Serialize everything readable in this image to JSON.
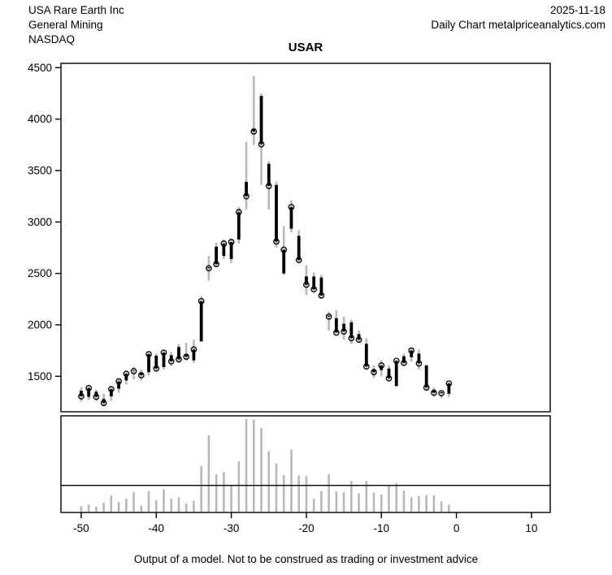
{
  "header": {
    "company": "USA Rare Earth Inc",
    "sector": "General Mining",
    "exchange": "NASDAQ",
    "date": "2025-11-18",
    "source": "Daily Chart metalpriceanalytics.com"
  },
  "footer": "Output of a model. Not to be construed as trading or investment advice",
  "chart_data": {
    "type": "ohlc-bar-with-volume",
    "title": "USAR",
    "xlabel": "",
    "ylabel": "",
    "x_ticks": [
      -50,
      -40,
      -30,
      -20,
      -10,
      0,
      10
    ],
    "y_ticks": [
      1500,
      2000,
      2500,
      3000,
      3500,
      4000,
      4500
    ],
    "xlim": [
      -52.7,
      12.5
    ],
    "ylim": [
      1155,
      4542
    ],
    "grid": false,
    "legend": "none",
    "x": [
      -50,
      -49,
      -48,
      -47,
      -46,
      -45,
      -44,
      -43,
      -42,
      -41,
      -40,
      -39,
      -38,
      -37,
      -36,
      -35,
      -34,
      -33,
      -32,
      -31,
      -30,
      -29,
      -28,
      -27,
      -26,
      -25,
      -24,
      -23,
      -22,
      -21,
      -20,
      -19,
      -18,
      -17,
      -16,
      -15,
      -14,
      -13,
      -12,
      -11,
      -10,
      -9,
      -8,
      -7,
      -6,
      -5,
      -4,
      -3,
      -2,
      -1
    ],
    "open": [
      1360,
      1300,
      1350,
      1280,
      1305,
      1380,
      1460,
      1555,
      1535,
      1540,
      1700,
      1590,
      1705,
      1785,
      1710,
      1655,
      1840,
      2560,
      2760,
      2670,
      2640,
      2830,
      3390,
      3905,
      4225,
      3565,
      3360,
      2500,
      2935,
      2865,
      2470,
      2470,
      2460,
      2090,
      2065,
      2010,
      2025,
      1910,
      1815,
      1570,
      1560,
      1575,
      1405,
      1695,
      1685,
      1720,
      1605,
      1370,
      1345,
      1330
    ],
    "high": [
      1395,
      1400,
      1370,
      1330,
      1395,
      1470,
      1550,
      1590,
      1565,
      1735,
      1720,
      1755,
      1735,
      1815,
      1825,
      1855,
      2280,
      2670,
      2800,
      2830,
      2840,
      3145,
      3780,
      4420,
      4250,
      3590,
      3395,
      2960,
      3210,
      2920,
      2580,
      2510,
      2485,
      2130,
      2140,
      2080,
      2050,
      1945,
      1870,
      1605,
      1655,
      1605,
      1660,
      1720,
      1775,
      1760,
      1615,
      1390,
      1365,
      1445
    ],
    "low": [
      1255,
      1270,
      1260,
      1215,
      1260,
      1340,
      1420,
      1470,
      1460,
      1510,
      1550,
      1565,
      1600,
      1630,
      1655,
      1630,
      1835,
      2430,
      2570,
      2640,
      2600,
      2790,
      3120,
      3750,
      3360,
      3120,
      2750,
      2485,
      2900,
      2600,
      2290,
      2325,
      2260,
      1945,
      1920,
      1855,
      1815,
      1825,
      1565,
      1485,
      1500,
      1460,
      1400,
      1600,
      1645,
      1565,
      1365,
      1300,
      1285,
      1300
    ],
    "close": [
      1305,
      1385,
      1300,
      1240,
      1375,
      1450,
      1525,
      1550,
      1510,
      1715,
      1575,
      1730,
      1645,
      1665,
      1690,
      1760,
      2230,
      2550,
      2590,
      2790,
      2805,
      3095,
      3250,
      3880,
      3755,
      3350,
      2810,
      2730,
      3145,
      2630,
      2390,
      2345,
      2285,
      2080,
      1925,
      1935,
      1870,
      1855,
      1595,
      1540,
      1605,
      1480,
      1650,
      1630,
      1750,
      1625,
      1390,
      1340,
      1335,
      1430
    ],
    "volume_pct": [
      5.6,
      7.3,
      5.0,
      9.2,
      16.8,
      10.1,
      13.4,
      20.4,
      6.4,
      21.3,
      12.0,
      23.3,
      13.4,
      14.9,
      8.4,
      11.2,
      47.1,
      79.2,
      38.7,
      40.9,
      28.0,
      52.1,
      96.1,
      95.2,
      86.8,
      62.5,
      49.9,
      37.8,
      64.4,
      37.3,
      36.7,
      13.4,
      21.3,
      38.7,
      21.0,
      20.4,
      31.7,
      19.0,
      31.7,
      19.6,
      17.6,
      26.6,
      29.7,
      21.8,
      14.8,
      16.2,
      17.1,
      16.8,
      10.6,
      7.3
    ],
    "volume_ref_line_pct": 28,
    "colors": {
      "range_line": "#b8b8b8",
      "body": "#000000",
      "close_marker_stroke": "#000000",
      "frame": "#000000",
      "text": "#000000",
      "background": "#ffffff"
    }
  }
}
